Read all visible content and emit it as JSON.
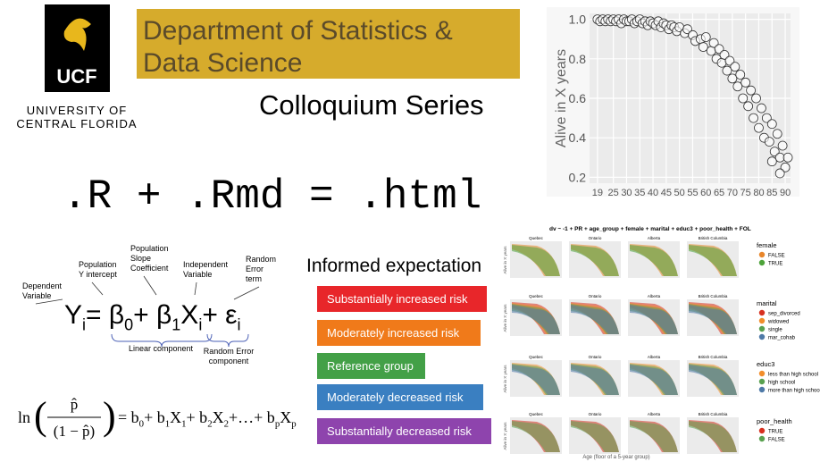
{
  "logo": {
    "mark": "UCF",
    "line1": "UNIVERSITY OF",
    "line2": "CENTRAL FLORIDA"
  },
  "header": {
    "title_line1": "Department of Statistics &",
    "title_line2": "Data Science",
    "subtitle": "Colloquium Series"
  },
  "code_line": ".R + .Rmd = .html",
  "chart_data": {
    "type": "scatter",
    "ylabel": "Alive in X years",
    "color": "#ffffff",
    "x": [
      19,
      20,
      21,
      22,
      23,
      24,
      25,
      26,
      27,
      28,
      29,
      30,
      31,
      32,
      33,
      34,
      35,
      36,
      37,
      38,
      39,
      40,
      41,
      42,
      43,
      44,
      45,
      46,
      47,
      48,
      49,
      50,
      52,
      53,
      55,
      56,
      58,
      59,
      60,
      62,
      63,
      64,
      65,
      66,
      67,
      68,
      69,
      70,
      71,
      72,
      73,
      74,
      75,
      76,
      77,
      78,
      79,
      80,
      81,
      82,
      83,
      84,
      85,
      86,
      87,
      88,
      89,
      90,
      91,
      88,
      85
    ],
    "y": [
      1,
      0.99,
      1,
      0.99,
      1,
      0.99,
      1,
      0.99,
      1,
      0.98,
      1,
      0.99,
      0.99,
      1,
      0.98,
      0.99,
      1,
      0.98,
      0.99,
      0.97,
      0.99,
      0.98,
      0.97,
      0.99,
      0.96,
      0.98,
      0.97,
      0.95,
      0.97,
      0.96,
      0.94,
      0.96,
      0.93,
      0.95,
      0.92,
      0.89,
      0.9,
      0.86,
      0.91,
      0.84,
      0.88,
      0.8,
      0.85,
      0.78,
      0.82,
      0.74,
      0.79,
      0.7,
      0.76,
      0.66,
      0.72,
      0.6,
      0.68,
      0.56,
      0.64,
      0.5,
      0.6,
      0.45,
      0.55,
      0.4,
      0.5,
      0.38,
      0.47,
      0.33,
      0.42,
      0.3,
      0.36,
      0.25,
      0.3,
      0.22,
      0.28
    ],
    "xlim": [
      16,
      92
    ],
    "ylim": [
      0.17,
      1.03
    ],
    "xticks": [
      19,
      25,
      30,
      35,
      40,
      45,
      50,
      55,
      60,
      65,
      70,
      75,
      80,
      85,
      90
    ],
    "yticks": [
      0.2,
      0.4,
      0.6,
      0.8,
      {
        "value": 1,
        "label": "1.0"
      }
    ],
    "grid": true
  },
  "risk": {
    "title": "Informed expectation",
    "items": [
      {
        "label": "Substantially increased risk",
        "color": "#e8262a"
      },
      {
        "label": "Moderately increased risk",
        "color": "#f07a1a"
      },
      {
        "label": "Reference group",
        "color": "#43a047"
      },
      {
        "label": "Moderately decreased risk",
        "color": "#3a7fc1"
      },
      {
        "label": "Substantially decreased risk",
        "color": "#8e44ad"
      }
    ]
  },
  "equation1": {
    "parts": [
      {
        "text": "Y",
        "sub": false
      },
      {
        "text": "i",
        "sub": true
      },
      {
        "text": " = β",
        "sub": false
      },
      {
        "text": "0",
        "sub": true
      },
      {
        "text": " + β",
        "sub": false
      },
      {
        "text": "1",
        "sub": true
      },
      {
        "text": "X",
        "sub": false
      },
      {
        "text": "i",
        "sub": true
      },
      {
        "text": " + ε",
        "sub": false
      },
      {
        "text": "i",
        "sub": true
      }
    ],
    "annotations": [
      [
        "Dependent",
        "Variable"
      ],
      [
        "Population",
        "Y  intercept"
      ],
      [
        "Population",
        "Slope",
        "Coefficient"
      ],
      [
        "Independent",
        "Variable"
      ],
      [
        "Random",
        "Error",
        "term"
      ]
    ],
    "linear_component": "Linear component",
    "error_component": [
      "Random Error",
      "component"
    ]
  },
  "equation2": {
    "ln": "ln",
    "open": "(",
    "numerator": "p̂",
    "denominator": "(1 − p̂)",
    "close": ")",
    "parts": [
      {
        "text": " = b",
        "sub": false
      },
      {
        "text": "0",
        "sub": true
      },
      {
        "text": " + b",
        "sub": false
      },
      {
        "text": "1",
        "sub": true
      },
      {
        "text": "X",
        "sub": false
      },
      {
        "text": "1",
        "sub": true
      },
      {
        "text": " + b",
        "sub": false
      },
      {
        "text": "2",
        "sub": true
      },
      {
        "text": "X",
        "sub": false
      },
      {
        "text": "2",
        "sub": true
      },
      {
        "text": " +…+ b",
        "sub": false
      },
      {
        "text": "p",
        "sub": true
      },
      {
        "text": "X",
        "sub": false
      },
      {
        "text": "p",
        "sub": true
      }
    ]
  },
  "facets": {
    "title": "dv ~ -1 + PR + age_group + female + marital + educ3 + poor_health + FOL",
    "panels": [
      "Quebec",
      "Ontario",
      "Alberta",
      "British Columbia"
    ],
    "ylabel": "Alive in X years",
    "xlabel": "Age (floor of a 5-year group)",
    "rows": [
      {
        "legend": "female",
        "levels": [
          {
            "name": "FALSE",
            "color": "#e8862a"
          },
          {
            "name": "TRUE",
            "color": "#4da33a"
          }
        ]
      },
      {
        "legend": "marital",
        "levels": [
          {
            "name": "sep_divorced",
            "color": "#d7301f"
          },
          {
            "name": "widowed",
            "color": "#f28e2b"
          },
          {
            "name": "single",
            "color": "#59a14f"
          },
          {
            "name": "mar_cohab",
            "color": "#4e79a7"
          }
        ]
      },
      {
        "legend": "educ3",
        "levels": [
          {
            "name": "less than high school",
            "color": "#f28e2b"
          },
          {
            "name": "high school",
            "color": "#59a14f"
          },
          {
            "name": "more than high school",
            "color": "#4e79a7"
          }
        ]
      },
      {
        "legend": "poor_health",
        "levels": [
          {
            "name": "TRUE",
            "color": "#d7301f"
          },
          {
            "name": "FALSE",
            "color": "#59a14f"
          }
        ]
      }
    ]
  }
}
